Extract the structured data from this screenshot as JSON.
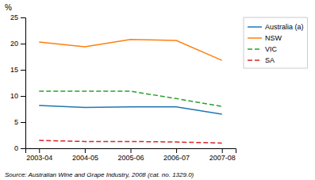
{
  "chart_data": {
    "type": "line",
    "categories": [
      "2003-04",
      "2004-05",
      "2005-06",
      "2006-07",
      "2007-08"
    ],
    "series": [
      {
        "name": "Australia (a)",
        "line_style": "solid",
        "values": [
          8.2,
          7.8,
          7.9,
          7.9,
          6.5
        ]
      },
      {
        "name": "NSW",
        "line_style": "solid",
        "values": [
          20.3,
          19.4,
          20.8,
          20.6,
          16.8
        ]
      },
      {
        "name": "VIC",
        "line_style": "dashed",
        "values": [
          10.9,
          10.9,
          10.9,
          9.5,
          8.0
        ]
      },
      {
        "name": "SA",
        "line_style": "dashed",
        "values": [
          1.5,
          1.3,
          1.3,
          1.2,
          1.0
        ]
      }
    ],
    "ylim": [
      0,
      25
    ],
    "yticks": [
      0,
      5,
      10,
      15,
      20,
      25
    ],
    "ylabel": "%",
    "source": "Source: Australian Wine and Grape Industry, 2008 (cat. no. 1329.0)",
    "grid": false,
    "legend": "upper right"
  }
}
